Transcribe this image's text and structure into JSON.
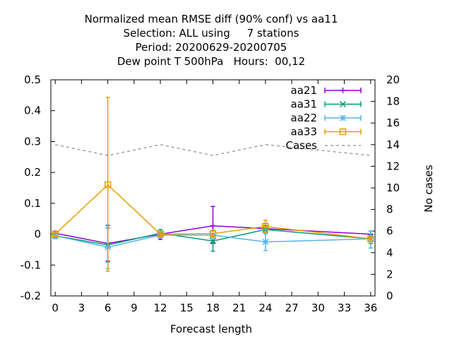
{
  "chart_data": {
    "type": "line",
    "title": [
      "Normalized mean RMSE diff (90% conf) vs aa11",
      "Selection: ALL using     7 stations",
      "Period: 20200629-20200705",
      "Dew point T 500hPa   Hours:  00,12"
    ],
    "xlabel": "Forecast length",
    "ylabel": "",
    "y2label": "No cases",
    "xlim": [
      -0.5,
      36.5
    ],
    "ylim": [
      -0.2,
      0.5
    ],
    "y2lim": [
      0,
      20
    ],
    "xticks": [
      0,
      3,
      6,
      9,
      12,
      15,
      18,
      21,
      24,
      27,
      30,
      33,
      36
    ],
    "yticks": [
      -0.2,
      -0.1,
      0,
      0.1,
      0.2,
      0.3,
      0.4,
      0.5
    ],
    "yticklabels": [
      "-0.2",
      "-0.1",
      "0",
      "0.1",
      "0.2",
      "0.3",
      "0.4",
      "0.5"
    ],
    "y2ticks": [
      0,
      2,
      4,
      6,
      8,
      10,
      12,
      14,
      16,
      18,
      20
    ],
    "legend_position": "top-right",
    "grid": false,
    "x": [
      0,
      6,
      12,
      18,
      24,
      36
    ],
    "series": [
      {
        "name": "aa21",
        "color": "#9400d3",
        "marker": "plus",
        "values": [
          0.003,
          -0.03,
          0.0,
          0.027,
          0.018,
          0.0
        ],
        "err_low": [
          -0.008,
          -0.087,
          -0.017,
          -0.03,
          0.005,
          -0.01
        ],
        "err_high": [
          0.01,
          0.028,
          0.007,
          0.09,
          0.035,
          0.01
        ]
      },
      {
        "name": "aa31",
        "color": "#009e73",
        "marker": "x",
        "values": [
          -0.005,
          -0.035,
          0.003,
          -0.022,
          0.015,
          -0.015
        ],
        "err_low": [
          -0.014,
          -0.09,
          -0.008,
          -0.055,
          0.002,
          -0.03
        ],
        "err_high": [
          0.005,
          0.02,
          0.015,
          0.01,
          0.028,
          -0.002
        ]
      },
      {
        "name": "aa22",
        "color": "#56b4e9",
        "marker": "star",
        "values": [
          -0.005,
          -0.042,
          -0.003,
          -0.003,
          -0.025,
          -0.015
        ],
        "err_low": [
          -0.013,
          -0.112,
          -0.012,
          -0.017,
          -0.053,
          -0.045
        ],
        "err_high": [
          0.003,
          0.03,
          0.005,
          0.01,
          0.003,
          0.01
        ]
      },
      {
        "name": "aa33",
        "color": "#e69f00",
        "marker": "square",
        "values": [
          0.0,
          0.16,
          0.0,
          0.002,
          0.025,
          -0.015
        ],
        "err_low": [
          -0.006,
          -0.12,
          -0.008,
          -0.01,
          0.005,
          -0.025
        ],
        "err_high": [
          0.006,
          0.443,
          0.008,
          0.012,
          0.045,
          -0.005
        ]
      }
    ],
    "cases": {
      "name": "Cases",
      "color": "#a0a0a0",
      "axis": "right",
      "values": [
        14,
        13,
        14,
        13,
        14,
        13
      ]
    }
  }
}
